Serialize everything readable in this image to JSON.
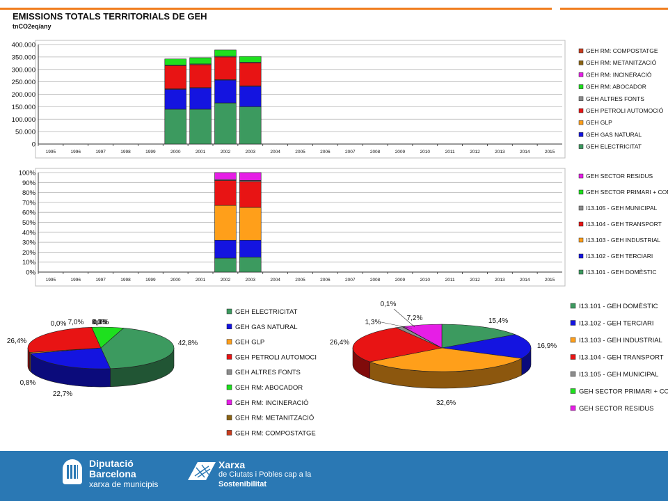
{
  "header": {
    "title": "EMISSIONS TOTALS TERRITORIALS DE GEH",
    "unit": "tnCO2eq/any"
  },
  "colors": {
    "accent_orange": "#f07d1e",
    "footer_blue": "#2a78b4",
    "electricitat": "#3c9a5f",
    "gas_natural": "#1414e0",
    "glp": "#ff9f1a",
    "petroli": "#e81414",
    "altres_fonts": "#8c8c8c",
    "abocador": "#1ee01e",
    "incineracio": "#e61ee6",
    "metanitzacio": "#8c6414",
    "compostatge": "#c83c1e"
  },
  "chart_data": [
    {
      "type": "bar",
      "stacked": true,
      "title": "",
      "ylim": [
        0,
        400000
      ],
      "yticks": [
        "0",
        "50.000",
        "100.000",
        "150.000",
        "200.000",
        "250.000",
        "300.000",
        "350.000",
        "400.000"
      ],
      "grid": true,
      "legend_position": "right",
      "categories": [
        "1995",
        "1996",
        "1997",
        "1998",
        "1999",
        "2000",
        "2001",
        "2002",
        "2003",
        "2004",
        "2005",
        "2006",
        "2007",
        "2008",
        "2009",
        "2010",
        "2011",
        "2012",
        "2013",
        "2014",
        "2015"
      ],
      "series": [
        {
          "name": "GEH ELECTRICITAT",
          "color": "#3c9a5f",
          "values": [
            null,
            null,
            null,
            null,
            null,
            140000,
            140000,
            165000,
            150000,
            null,
            null,
            null,
            null,
            null,
            null,
            null,
            null,
            null,
            null,
            null,
            null
          ]
        },
        {
          "name": "GEH GAS NATURAL",
          "color": "#1414e0",
          "values": [
            null,
            null,
            null,
            null,
            null,
            80000,
            85000,
            92000,
            82000,
            null,
            null,
            null,
            null,
            null,
            null,
            null,
            null,
            null,
            null,
            null,
            null
          ]
        },
        {
          "name": "GEH GLP",
          "color": "#ff9f1a",
          "values": [
            null,
            null,
            null,
            null,
            null,
            2000,
            2000,
            2000,
            2000,
            null,
            null,
            null,
            null,
            null,
            null,
            null,
            null,
            null,
            null,
            null,
            null
          ]
        },
        {
          "name": "GEH PETROLI AUTOMOCIÓ",
          "color": "#e81414",
          "values": [
            null,
            null,
            null,
            null,
            null,
            93000,
            92000,
            91000,
            92000,
            null,
            null,
            null,
            null,
            null,
            null,
            null,
            null,
            null,
            null,
            null,
            null
          ]
        },
        {
          "name": "GEH ALTRES FONTS",
          "color": "#8c8c8c",
          "values": [
            null,
            null,
            null,
            null,
            null,
            3000,
            3000,
            3000,
            3000,
            null,
            null,
            null,
            null,
            null,
            null,
            null,
            null,
            null,
            null,
            null,
            null
          ]
        },
        {
          "name": "GEH RM: ABOCADOR",
          "color": "#1ee01e",
          "values": [
            null,
            null,
            null,
            null,
            null,
            24000,
            25000,
            25000,
            23000,
            null,
            null,
            null,
            null,
            null,
            null,
            null,
            null,
            null,
            null,
            null,
            null
          ]
        },
        {
          "name": "GEH RM: INCINERACIÓ",
          "color": "#e61ee6",
          "values": [
            null,
            null,
            null,
            null,
            null,
            0,
            0,
            0,
            0,
            null,
            null,
            null,
            null,
            null,
            null,
            null,
            null,
            null,
            null,
            null,
            null
          ]
        },
        {
          "name": "GEH RM: METANITZACIÓ",
          "color": "#8c6414",
          "values": [
            null,
            null,
            null,
            null,
            null,
            0,
            0,
            0,
            0,
            null,
            null,
            null,
            null,
            null,
            null,
            null,
            null,
            null,
            null,
            null,
            null
          ]
        },
        {
          "name": "GEH RM: COMPOSTATGE",
          "color": "#c83c1e",
          "values": [
            null,
            null,
            null,
            null,
            null,
            0,
            0,
            0,
            0,
            null,
            null,
            null,
            null,
            null,
            null,
            null,
            null,
            null,
            null,
            null,
            null
          ]
        }
      ]
    },
    {
      "type": "bar",
      "stacked": true,
      "percent": true,
      "title": "",
      "ylim": [
        0,
        100
      ],
      "yticks": [
        "0%",
        "10%",
        "20%",
        "30%",
        "40%",
        "50%",
        "60%",
        "70%",
        "80%",
        "90%",
        "100%"
      ],
      "grid": true,
      "legend_position": "right",
      "categories": [
        "1995",
        "1996",
        "1997",
        "1998",
        "1999",
        "2000",
        "2001",
        "2002",
        "2003",
        "2004",
        "2005",
        "2006",
        "2007",
        "2008",
        "2009",
        "2010",
        "2011",
        "2012",
        "2013",
        "2014",
        "2015"
      ],
      "series": [
        {
          "name": "I13.101 - GEH DOMÈSTIC",
          "color": "#3c9a5f",
          "values": [
            null,
            null,
            null,
            null,
            null,
            null,
            null,
            14,
            15,
            null,
            null,
            null,
            null,
            null,
            null,
            null,
            null,
            null,
            null,
            null,
            null
          ]
        },
        {
          "name": "I13.102 - GEH TERCIARI",
          "color": "#1414e0",
          "values": [
            null,
            null,
            null,
            null,
            null,
            null,
            null,
            18,
            17,
            null,
            null,
            null,
            null,
            null,
            null,
            null,
            null,
            null,
            null,
            null,
            null
          ]
        },
        {
          "name": "I13.103 - GEH INDUSTRIAL",
          "color": "#ff9f1a",
          "values": [
            null,
            null,
            null,
            null,
            null,
            null,
            null,
            35,
            33,
            null,
            null,
            null,
            null,
            null,
            null,
            null,
            null,
            null,
            null,
            null,
            null
          ]
        },
        {
          "name": "I13.104 - GEH TRANSPORT",
          "color": "#e81414",
          "values": [
            null,
            null,
            null,
            null,
            null,
            null,
            null,
            25,
            26,
            null,
            null,
            null,
            null,
            null,
            null,
            null,
            null,
            null,
            null,
            null,
            null
          ]
        },
        {
          "name": "I13.105 - GEH MUNICIPAL",
          "color": "#8c8c8c",
          "values": [
            null,
            null,
            null,
            null,
            null,
            null,
            null,
            1,
            1,
            null,
            null,
            null,
            null,
            null,
            null,
            null,
            null,
            null,
            null,
            null,
            null
          ]
        },
        {
          "name": "GEH SECTOR PRIMARI + CONSTRUCCIÓ",
          "color": "#1ee01e",
          "values": [
            null,
            null,
            null,
            null,
            null,
            null,
            null,
            0,
            0.1,
            null,
            null,
            null,
            null,
            null,
            null,
            null,
            null,
            null,
            null,
            null,
            null
          ]
        },
        {
          "name": "GEH SECTOR RESIDUS",
          "color": "#e61ee6",
          "values": [
            null,
            null,
            null,
            null,
            null,
            null,
            null,
            7,
            7.9,
            null,
            null,
            null,
            null,
            null,
            null,
            null,
            null,
            null,
            null,
            null,
            null
          ]
        }
      ]
    },
    {
      "type": "pie",
      "title": "",
      "legend_position": "right",
      "slices": [
        {
          "name": "GEH ELECTRICITAT",
          "value": 42.8,
          "label": "42,8%",
          "color": "#3c9a5f"
        },
        {
          "name": "GEH GAS NATURAL",
          "value": 22.7,
          "label": "22,7%",
          "color": "#1414e0"
        },
        {
          "name": "GEH GLP",
          "value": 0.8,
          "label": "0,8%",
          "color": "#ff9f1a"
        },
        {
          "name": "GEH PETROLI AUTOMOCI",
          "value": 26.4,
          "label": "26,4%",
          "color": "#e81414"
        },
        {
          "name": "GEH ALTRES FONTS",
          "value": 0.0,
          "label": "0,0%",
          "color": "#8c8c8c"
        },
        {
          "name": "GEH RM: ABOCADOR",
          "value": 7.0,
          "label": "7,0%",
          "color": "#1ee01e"
        },
        {
          "name": "GEH RM: INCINERACIÓ",
          "value": 0.0,
          "label": "0,0%",
          "color": "#e61ee6"
        },
        {
          "name": "GEH RM: METANITZACIÓ",
          "value": 0.0,
          "label": "0,0%",
          "color": "#8c6414"
        },
        {
          "name": "GEH RM: COMPOSTATGE",
          "value": 0.0,
          "label": "0,0%",
          "color": "#c83c1e"
        }
      ]
    },
    {
      "type": "pie",
      "title": "",
      "legend_position": "right",
      "slices": [
        {
          "name": "I13.101 - GEH DOMÈSTIC",
          "value": 15.4,
          "label": "15,4%",
          "color": "#3c9a5f"
        },
        {
          "name": "I13.102 - GEH TERCIARI",
          "value": 16.9,
          "label": "16,9%",
          "color": "#1414e0"
        },
        {
          "name": "I13.103 - GEH INDUSTRIAL",
          "value": 32.6,
          "label": "32,6%",
          "color": "#ff9f1a"
        },
        {
          "name": "I13.104 - GEH TRANSPORT",
          "value": 26.4,
          "label": "26,4%",
          "color": "#e81414"
        },
        {
          "name": "I13.105 - GEH MUNICIPAL",
          "value": 1.3,
          "label": "1,3%",
          "color": "#8c8c8c"
        },
        {
          "name": "GEH SECTOR PRIMARI + CONSTRUCCIÓ",
          "value": 0.1,
          "label": "0,1%",
          "color": "#1ee01e"
        },
        {
          "name": "GEH SECTOR RESIDUS",
          "value": 7.2,
          "label": "7,2%",
          "color": "#e61ee6"
        }
      ]
    }
  ],
  "footer": {
    "diputacio_name_1": "Diputació",
    "diputacio_name_2": "Barcelona",
    "diputacio_sub": "xarxa de municipis",
    "xarxa_name": "Xarxa",
    "xarxa_sub1": "de Ciutats i Pobles cap a la",
    "xarxa_sub2": "Sostenibilitat"
  }
}
